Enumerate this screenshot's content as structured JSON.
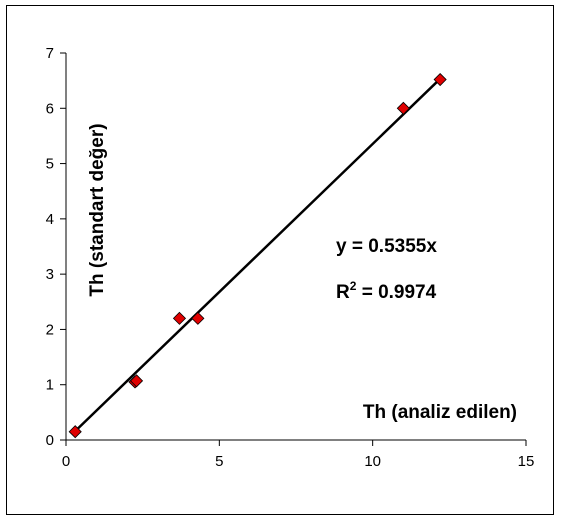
{
  "chart_data": {
    "type": "scatter",
    "title": "",
    "xlabel": "Th (analiz edilen)",
    "ylabel": "Th (standart değer)",
    "xlim": [
      0,
      15
    ],
    "ylim": [
      0,
      7
    ],
    "xticks": [
      0,
      5,
      10,
      15
    ],
    "yticks": [
      0,
      1,
      2,
      3,
      4,
      5,
      6,
      7
    ],
    "grid": false,
    "legend": "none",
    "marker": "diamond",
    "marker_color": "#e00000",
    "series": [
      {
        "x": [
          0.3,
          2.25,
          2.3,
          3.7,
          4.3,
          11.0,
          12.2
        ],
        "y": [
          0.15,
          1.05,
          1.07,
          2.2,
          2.2,
          6.0,
          6.52
        ]
      }
    ],
    "trendline": {
      "type": "linear",
      "x_range": [
        0.3,
        12.2
      ],
      "slope": 0.5355,
      "equation": "y = 0.5355x",
      "r2_prefix": "R",
      "r2_exponent": "2",
      "r2_suffix": " = 0.9974"
    }
  }
}
